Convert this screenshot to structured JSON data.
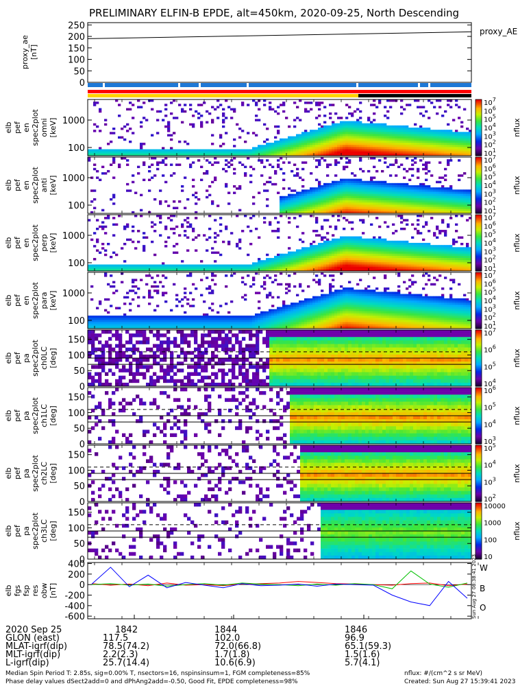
{
  "title": "PRELIMINARY ELFIN-B EPDE, alt=450km, 2020-09-25, North Descending",
  "colors": {
    "orbit_bar_blue": "#1e78d6",
    "flag_red": "#ff0000",
    "flag_yellow": "#ffd200",
    "flag_black": "#000000",
    "fgm_red": "#ff0000",
    "fgm_green": "#00c000",
    "fgm_blue": "#0000ff"
  },
  "panels": {
    "ae": {
      "ylabel": [
        "proxy_ae",
        "[nT]"
      ],
      "yticks": [
        "250",
        "200",
        "150",
        "100",
        "50",
        "0"
      ],
      "legend": "proxy_AE"
    },
    "spec": [
      {
        "ylabel": [
          "elb",
          "pef",
          "en",
          "spec2plot",
          "omni",
          "[keV]"
        ],
        "yticks": [
          "1000",
          "100"
        ],
        "cbar_unit": "nflux",
        "cbar_ticks": [
          "10^7",
          "10^6",
          "10^5",
          "10^4",
          "10^3",
          "10^2",
          "10^1"
        ]
      },
      {
        "ylabel": [
          "elb",
          "pef",
          "en",
          "spec2plot",
          "anti",
          "[keV]"
        ],
        "yticks": [
          "1000",
          "100"
        ],
        "cbar_unit": "nflux",
        "cbar_ticks": [
          "10^7",
          "10^6",
          "10^5",
          "10^4",
          "10^3",
          "10^2",
          "10^1"
        ]
      },
      {
        "ylabel": [
          "elb",
          "pef",
          "en",
          "spec2plot",
          "perp",
          "[keV]"
        ],
        "yticks": [
          "1000",
          "100"
        ],
        "cbar_unit": "nflux",
        "cbar_ticks": [
          "10^7",
          "10^6",
          "10^5",
          "10^4",
          "10^3",
          "10^2",
          "10^1"
        ]
      },
      {
        "ylabel": [
          "elb",
          "pef",
          "en",
          "spec2plot",
          "para",
          "[keV]"
        ],
        "yticks": [
          "1000",
          "100"
        ],
        "cbar_unit": "nflux",
        "cbar_ticks": [
          "10^7",
          "10^6",
          "10^5",
          "10^4",
          "10^3",
          "10^2",
          "10^1"
        ]
      }
    ],
    "pa": [
      {
        "ylabel": [
          "elb",
          "pef",
          "pa",
          "spec2plot",
          "ch0LC",
          "[deg]"
        ],
        "yticks": [
          "150",
          "100",
          "50",
          "0"
        ],
        "cbar_unit": "nflux",
        "cbar_ticks": [
          "10^7",
          "10^6",
          "10^5",
          "10^4"
        ]
      },
      {
        "ylabel": [
          "elb",
          "pef",
          "pa",
          "spec2plot",
          "ch1LC",
          "[deg]"
        ],
        "yticks": [
          "150",
          "100",
          "50",
          "0"
        ],
        "cbar_unit": "nflux",
        "cbar_ticks": [
          "10^6",
          "10^5",
          "10^4",
          "10^3"
        ]
      },
      {
        "ylabel": [
          "elb",
          "pef",
          "pa",
          "spec2plot",
          "ch2LC",
          "[deg]"
        ],
        "yticks": [
          "150",
          "100",
          "50",
          "0"
        ],
        "cbar_unit": "nflux",
        "cbar_ticks": [
          "10^5",
          "10^4",
          "10^3",
          "10^2"
        ]
      },
      {
        "ylabel": [
          "elb",
          "pef",
          "pa",
          "spec2plot",
          "ch3LC",
          "[deg]"
        ],
        "yticks": [
          "150",
          "100",
          "50",
          "0"
        ],
        "cbar_unit": "nflux",
        "cbar_ticks": [
          "10000",
          "1000",
          "100",
          "10"
        ]
      }
    ],
    "fgm": {
      "ylabel": [
        "elb",
        "fgs",
        "fsp",
        "res",
        "obw",
        "[nT]"
      ],
      "yticks": [
        "400",
        "200",
        "0",
        "-200",
        "-400",
        "-600"
      ],
      "legend": [
        "W",
        "B",
        "O"
      ],
      "stamp": "Sun Aug 27 08:38:41 2023"
    }
  },
  "xaxis": {
    "ticks": [
      "1842",
      "1844",
      "1846"
    ],
    "rows": [
      {
        "label": "2020 Sep 25",
        "values": [
          "",
          "",
          ""
        ]
      },
      {
        "label": "GLON (east)",
        "values": [
          "117.5",
          "102.0",
          "96.9"
        ]
      },
      {
        "label": "MLAT-igrf(dip)",
        "values": [
          "78.5(74.2)",
          "72.0(66.8)",
          "65.1(59.3)"
        ]
      },
      {
        "label": "MLT-igrf(dip)",
        "values": [
          "2.2(2.3)",
          "1.7(1.8)",
          "1.5(1.6)"
        ]
      },
      {
        "label": "L-igrf(dip)",
        "values": [
          "25.7(14.4)",
          "10.6(6.9)",
          "5.7(4.1)"
        ]
      }
    ]
  },
  "footer": {
    "left_1": "Median Spin Period T: 2.85s, sig=0.00% T, nsectors=16, nspinsinsum=1, FGM completeness=85%",
    "left_2": "Phase delay values dSect2add=0 and dPhAng2add=-0.50, Good Fit, EPDE completeness=98%",
    "right_1": "nflux: #/(cm^2 s sr MeV)",
    "right_2": "Created: Sun Aug 27 15:39:41 2023"
  },
  "chart_data": [
    {
      "type": "line",
      "name": "proxy_AE",
      "x": [
        "1841.3",
        "1848.0"
      ],
      "values": [
        190,
        220
      ],
      "ylim": [
        0,
        260
      ]
    },
    {
      "type": "heatmap",
      "note": "energy spectrograms (omni, anti, perp, para) and pitch-angle spectrograms ch0LC-ch3LC; flux rises after ~1844.5 and peaks near 1845.5",
      "xlim": [
        "1841.3",
        "1848.0"
      ],
      "energy_ylim_keV": [
        70,
        6000
      ],
      "pa_ylim_deg": [
        0,
        180
      ]
    },
    {
      "type": "line",
      "name": "fgs_res_obw",
      "ylim": [
        -650,
        420
      ],
      "x": [
        0,
        1,
        2,
        3,
        4,
        5,
        6,
        7,
        8,
        9,
        10,
        11,
        12,
        13,
        14,
        15,
        16,
        17,
        18,
        19,
        20
      ],
      "series": [
        {
          "name": "W",
          "values": [
            20,
            -10,
            10,
            -20,
            30,
            -10,
            0,
            -20,
            10,
            20,
            30,
            60,
            40,
            20,
            10,
            0,
            -10,
            20,
            30,
            -20,
            10
          ]
        },
        {
          "name": "B",
          "values": [
            0,
            20,
            -10,
            10,
            -30,
            0,
            20,
            -10,
            30,
            10,
            0,
            -20,
            10,
            -10,
            20,
            0,
            -80,
            260,
            10,
            -50,
            30
          ]
        },
        {
          "name": "O",
          "values": [
            10,
            330,
            -40,
            180,
            -60,
            40,
            -10,
            -60,
            20,
            -20,
            -10,
            10,
            -30,
            10,
            0,
            -10,
            -200,
            -330,
            -400,
            60,
            -260
          ]
        }
      ]
    }
  ]
}
